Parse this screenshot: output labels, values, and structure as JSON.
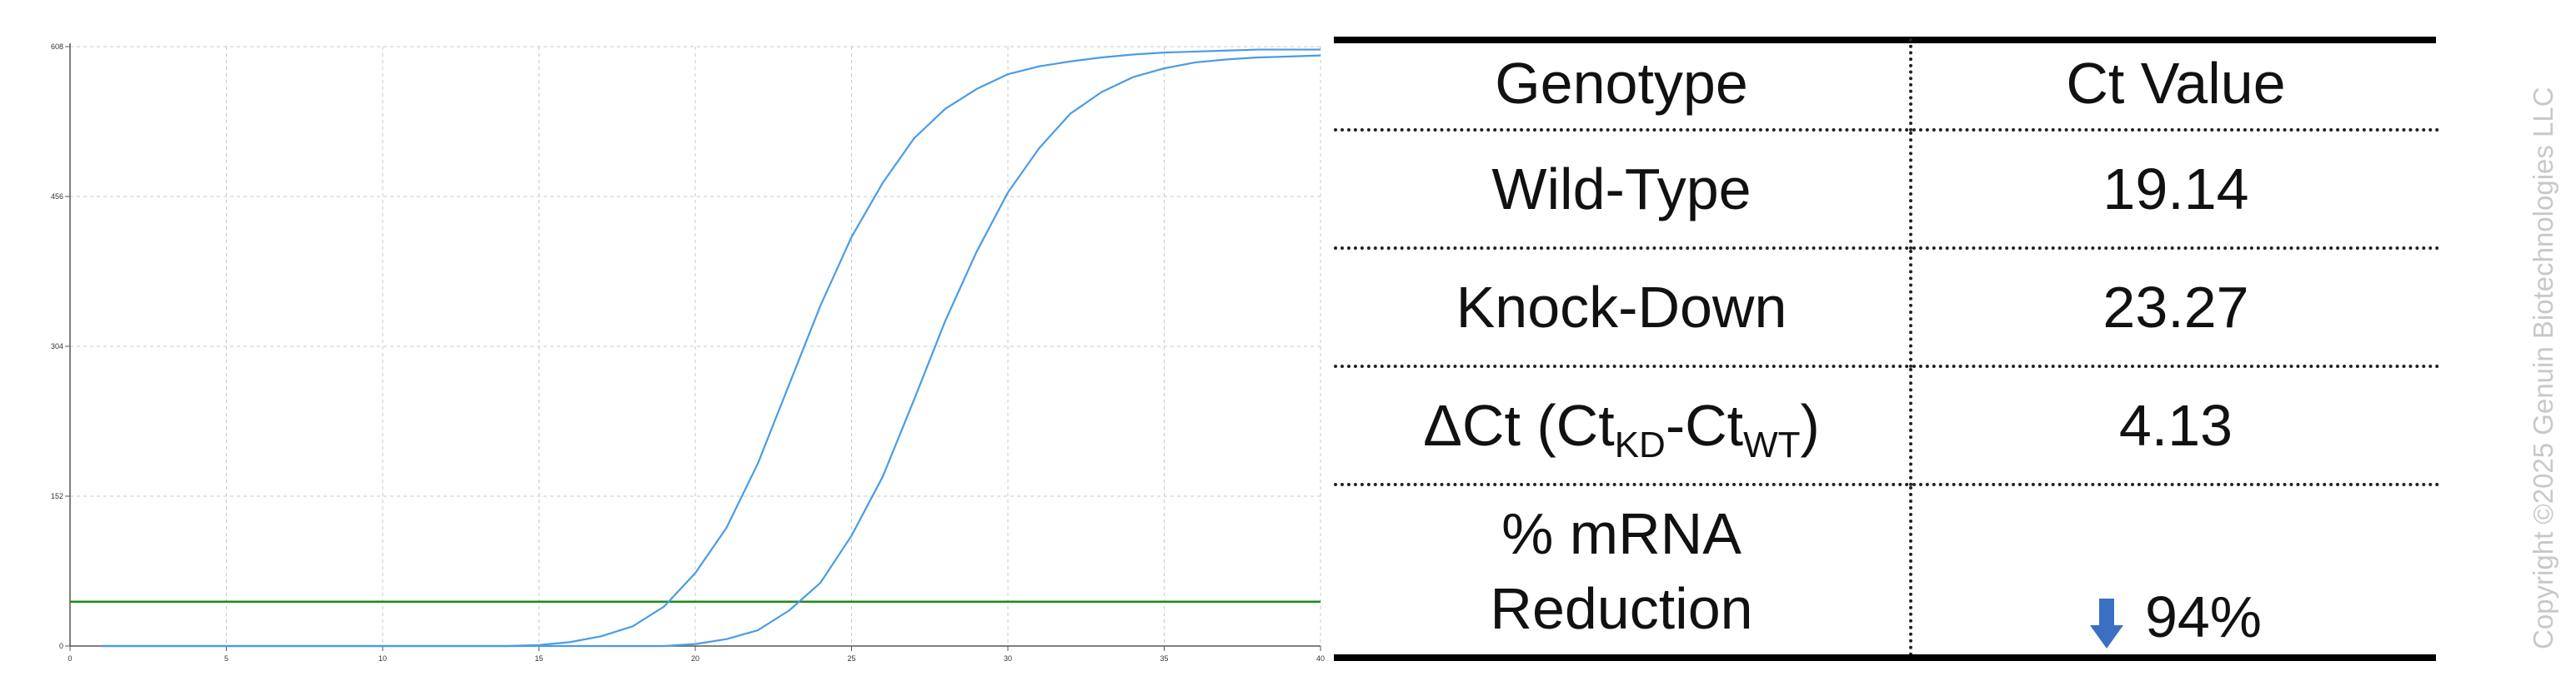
{
  "chart_data": {
    "type": "line",
    "title": "",
    "xlabel": "",
    "ylabel": "",
    "xlim": [
      0,
      40
    ],
    "ylim": [
      0,
      608
    ],
    "xticks": [
      0,
      5,
      10,
      15,
      20,
      25,
      30,
      35,
      40
    ],
    "yticks": [
      0,
      152,
      304,
      456,
      608
    ],
    "grid": true,
    "threshold": {
      "value": 45,
      "color": "#1a8c1a"
    },
    "series": [
      {
        "color": "#4a9be8",
        "x": [
          1,
          2,
          3,
          4,
          5,
          6,
          7,
          8,
          9,
          10,
          11,
          12,
          13,
          14,
          15,
          16,
          17,
          18,
          19,
          20,
          21,
          22,
          23,
          24,
          25,
          26,
          27,
          28,
          29,
          30,
          31,
          32,
          33,
          34,
          35,
          36,
          37,
          38,
          39,
          40
        ],
        "y": [
          0,
          0,
          0,
          0,
          0,
          0,
          0,
          0,
          0,
          0,
          0,
          0,
          0,
          0,
          1,
          4,
          10,
          20,
          40,
          74,
          120,
          185,
          265,
          345,
          415,
          470,
          515,
          545,
          565,
          580,
          588,
          593,
          597,
          600,
          602,
          603,
          604,
          605,
          605,
          605
        ]
      },
      {
        "color": "#4a9be8",
        "x": [
          1,
          2,
          3,
          4,
          5,
          6,
          7,
          8,
          9,
          10,
          11,
          12,
          13,
          14,
          15,
          16,
          17,
          18,
          19,
          20,
          21,
          22,
          23,
          24,
          25,
          26,
          27,
          28,
          29,
          30,
          31,
          32,
          33,
          34,
          35,
          36,
          37,
          38,
          39,
          40
        ],
        "y": [
          0,
          0,
          0,
          0,
          0,
          0,
          0,
          0,
          0,
          0,
          0,
          0,
          0,
          0,
          0,
          0,
          0,
          0,
          0,
          2,
          7,
          16,
          36,
          64,
          112,
          172,
          250,
          330,
          400,
          460,
          505,
          540,
          562,
          577,
          586,
          592,
          595,
          597,
          598,
          599
        ]
      }
    ]
  },
  "table": {
    "header": {
      "col1": "Genotype",
      "col2": "Ct Value"
    },
    "rows": [
      {
        "label": "Wild-Type",
        "value": "19.14"
      },
      {
        "label": "Knock-Down",
        "value": "23.27"
      }
    ],
    "delta": {
      "main": "ΔCt (Ct",
      "sub1": "KD",
      "mid": "-Ct",
      "sub2": "WT",
      "end": ")",
      "value": "4.13"
    },
    "reduction": {
      "label_line1": "% mRNA",
      "label_line2": "Reduction",
      "value": "94%",
      "arrow_icon": "down-arrow-icon",
      "arrow_color": "#3b6fc4"
    }
  },
  "copyright": "Copyright ©2025 Genuin Biotechnologies LLC"
}
